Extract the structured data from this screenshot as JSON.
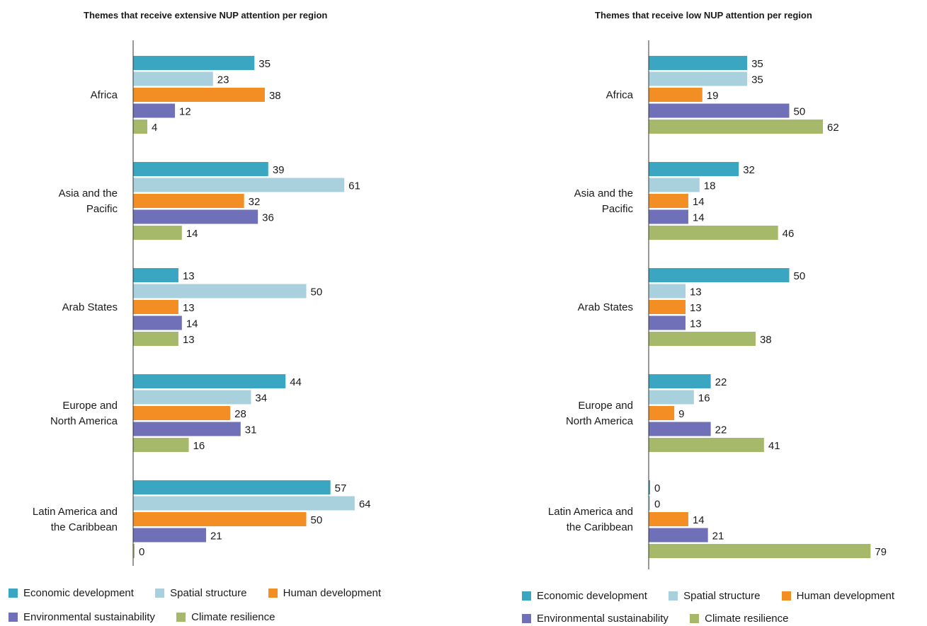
{
  "colors": {
    "economic": "#3aa6c1",
    "spatial": "#a9d0dd",
    "human": "#f28e23",
    "environmental": "#7070b8",
    "climate": "#a6b96b"
  },
  "chart_data": [
    {
      "type": "bar",
      "orientation": "horizontal",
      "title": "Themes that receive extensive NUP attention per region",
      "categories": [
        "Africa",
        "Asia and the Pacific",
        "Arab States",
        "Europe and North America",
        "Latin America and the Caribbean"
      ],
      "category_lines": [
        [
          "Africa"
        ],
        [
          "Asia and the",
          "Pacific"
        ],
        [
          "Arab States"
        ],
        [
          "Europe and",
          "North America"
        ],
        [
          "Latin America and",
          "the Caribbean"
        ]
      ],
      "series": [
        {
          "name": "Economic development",
          "values": [
            35,
            39,
            13,
            44,
            57
          ]
        },
        {
          "name": "Spatial structure",
          "values": [
            23,
            61,
            50,
            34,
            64
          ]
        },
        {
          "name": "Human development",
          "values": [
            38,
            32,
            13,
            28,
            50
          ]
        },
        {
          "name": "Environmental sustainability",
          "values": [
            12,
            36,
            14,
            31,
            21
          ]
        },
        {
          "name": "Climate resilience",
          "values": [
            4,
            14,
            13,
            16,
            0
          ]
        }
      ],
      "legend_position": "bottom",
      "grid": false
    },
    {
      "type": "bar",
      "orientation": "horizontal",
      "title": "Themes that receive low NUP attention per region",
      "categories": [
        "Africa",
        "Asia and the Pacific",
        "Arab States",
        "Europe and North America",
        "Latin America and the Caribbean"
      ],
      "category_lines": [
        [
          "Africa"
        ],
        [
          "Asia and the",
          "Pacific"
        ],
        [
          "Arab States"
        ],
        [
          "Europe and",
          "North America"
        ],
        [
          "Latin America and",
          "the Caribbean"
        ]
      ],
      "series": [
        {
          "name": "Economic development",
          "values": [
            35,
            32,
            50,
            22,
            0
          ]
        },
        {
          "name": "Spatial structure",
          "values": [
            35,
            18,
            13,
            16,
            0
          ]
        },
        {
          "name": "Human development",
          "values": [
            19,
            14,
            13,
            9,
            14
          ]
        },
        {
          "name": "Environmental sustainability",
          "values": [
            50,
            14,
            13,
            22,
            21
          ]
        },
        {
          "name": "Climate resilience",
          "values": [
            62,
            46,
            38,
            41,
            79
          ]
        }
      ],
      "legend_position": "bottom",
      "grid": false
    }
  ],
  "legend": {
    "row1": [
      "Economic development",
      "Spatial structure",
      "Human development"
    ],
    "row2": [
      "Environmental sustainability",
      "Climate resilience"
    ]
  }
}
